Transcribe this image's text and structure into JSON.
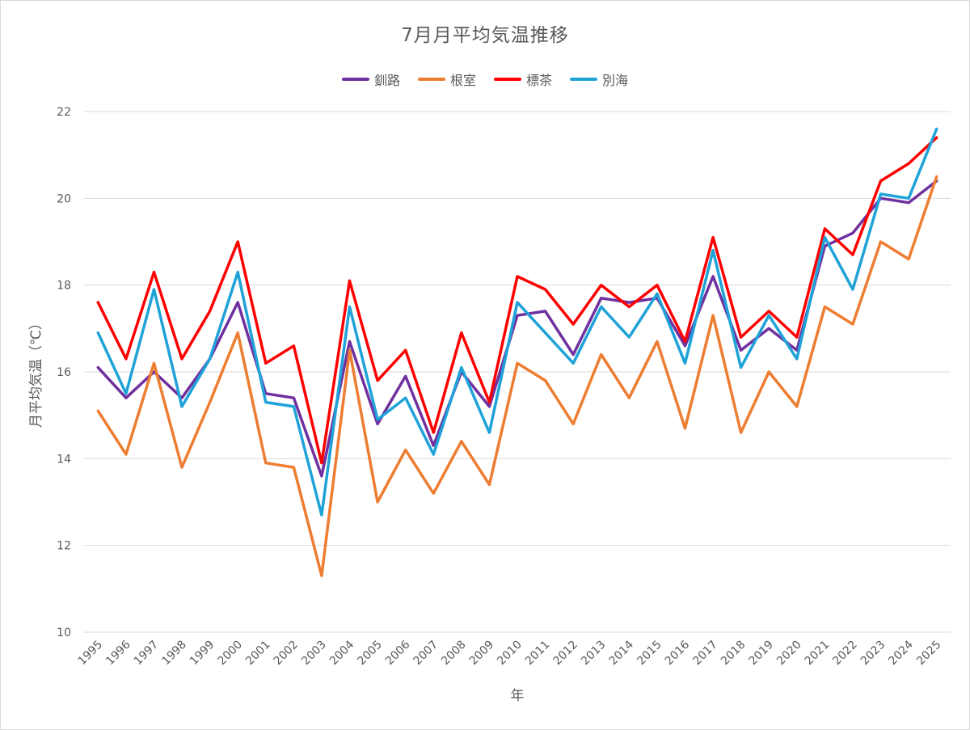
{
  "chart_data": {
    "type": "line",
    "title": "7月月平均気温推移",
    "xlabel": "年",
    "ylabel": "月平均気温（℃）",
    "ylim": [
      10,
      22
    ],
    "yticks": [
      "10",
      "12",
      "14",
      "16",
      "18",
      "20",
      "22"
    ],
    "grid": true,
    "legend_position": "top",
    "categories": [
      "1995",
      "1996",
      "1997",
      "1998",
      "1999",
      "2000",
      "2001",
      "2002",
      "2003",
      "2004",
      "2005",
      "2006",
      "2007",
      "2008",
      "2009",
      "2010",
      "2011",
      "2012",
      "2013",
      "2014",
      "2015",
      "2016",
      "2017",
      "2018",
      "2019",
      "2020",
      "2021",
      "2022",
      "2023",
      "2024",
      "2025"
    ],
    "series": [
      {
        "name": "釧路",
        "color": "#7030a0",
        "values": [
          16.1,
          15.4,
          16.0,
          15.4,
          16.3,
          17.6,
          15.5,
          15.4,
          13.6,
          16.7,
          14.8,
          15.9,
          14.3,
          16.0,
          15.2,
          17.3,
          17.4,
          16.4,
          17.7,
          17.6,
          17.7,
          16.6,
          18.2,
          16.5,
          17.0,
          16.5,
          18.9,
          19.2,
          20.0,
          19.9,
          20.4
        ]
      },
      {
        "name": "根室",
        "color": "#ed7d31",
        "values": [
          15.1,
          14.1,
          16.2,
          13.8,
          15.3,
          16.9,
          13.9,
          13.8,
          11.3,
          16.5,
          13.0,
          14.2,
          13.2,
          14.4,
          13.4,
          16.2,
          15.8,
          14.8,
          16.4,
          15.4,
          16.7,
          14.7,
          17.3,
          14.6,
          16.0,
          15.2,
          17.5,
          17.1,
          19.0,
          18.6,
          20.5
        ]
      },
      {
        "name": "標茶",
        "color": "#ff0000",
        "values": [
          17.6,
          16.3,
          18.3,
          16.3,
          17.4,
          19.0,
          16.2,
          16.6,
          13.9,
          18.1,
          15.8,
          16.5,
          14.6,
          16.9,
          15.3,
          18.2,
          17.9,
          17.1,
          18.0,
          17.5,
          18.0,
          16.7,
          19.1,
          16.8,
          17.4,
          16.8,
          19.3,
          18.7,
          20.4,
          20.8,
          21.4
        ]
      },
      {
        "name": "別海",
        "color": "#1fa2d8",
        "values": [
          16.9,
          15.5,
          17.9,
          15.2,
          16.3,
          18.3,
          15.3,
          15.2,
          12.7,
          17.5,
          14.9,
          15.4,
          14.1,
          16.1,
          14.6,
          17.6,
          16.9,
          16.2,
          17.5,
          16.8,
          17.8,
          16.2,
          18.8,
          16.1,
          17.3,
          16.3,
          19.1,
          17.9,
          20.1,
          20.0,
          21.6
        ]
      }
    ]
  }
}
